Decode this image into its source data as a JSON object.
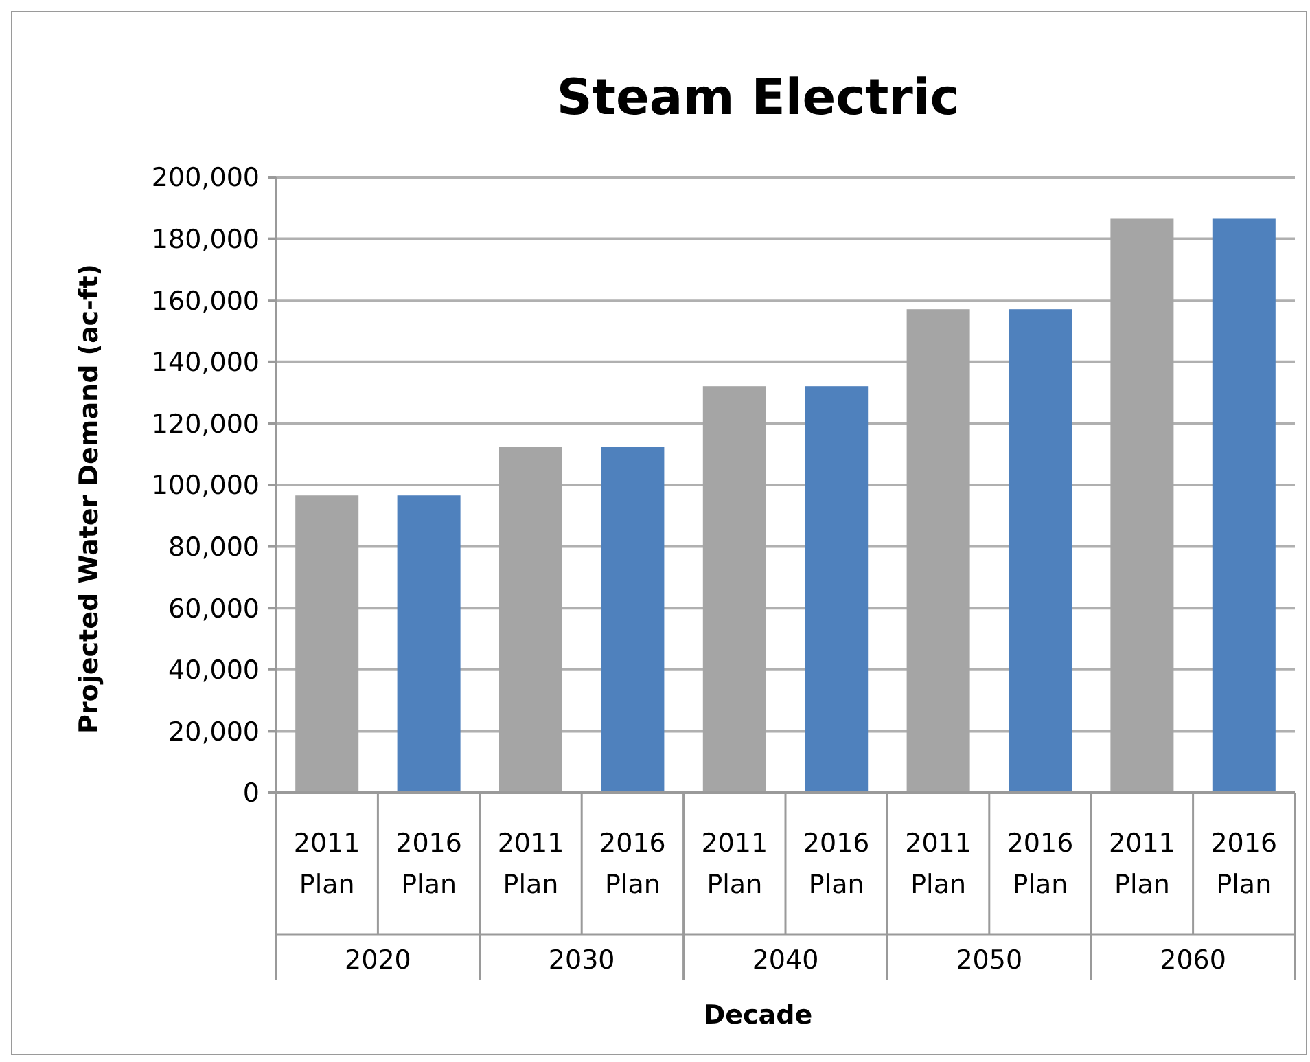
{
  "chart_data": {
    "type": "bar",
    "title": "Steam Electric",
    "xlabel": "Decade",
    "ylabel": "Projected Water Demand (ac-ft)",
    "categories": [
      "2020",
      "2030",
      "2040",
      "2050",
      "2060"
    ],
    "series": [
      {
        "name": "2011 Plan",
        "color": "#a5a5a5",
        "values": [
          96600,
          112500,
          132100,
          157100,
          186500
        ]
      },
      {
        "name": "2016 Plan",
        "color": "#4f81bd",
        "values": [
          96600,
          112500,
          132100,
          157100,
          186500
        ]
      }
    ],
    "ylim": [
      0,
      200000
    ],
    "yticks": [
      {
        "value": 0,
        "label": "0"
      },
      {
        "value": 20000,
        "label": "20,000"
      },
      {
        "value": 40000,
        "label": "40,000"
      },
      {
        "value": 60000,
        "label": "60,000"
      },
      {
        "value": 80000,
        "label": "80,000"
      },
      {
        "value": 100000,
        "label": "100,000"
      },
      {
        "value": 120000,
        "label": "120,000"
      },
      {
        "value": 140000,
        "label": "140,000"
      },
      {
        "value": 160000,
        "label": "160,000"
      },
      {
        "value": 180000,
        "label": "180,000"
      },
      {
        "value": 200000,
        "label": "200,000"
      }
    ],
    "grid": "y"
  }
}
